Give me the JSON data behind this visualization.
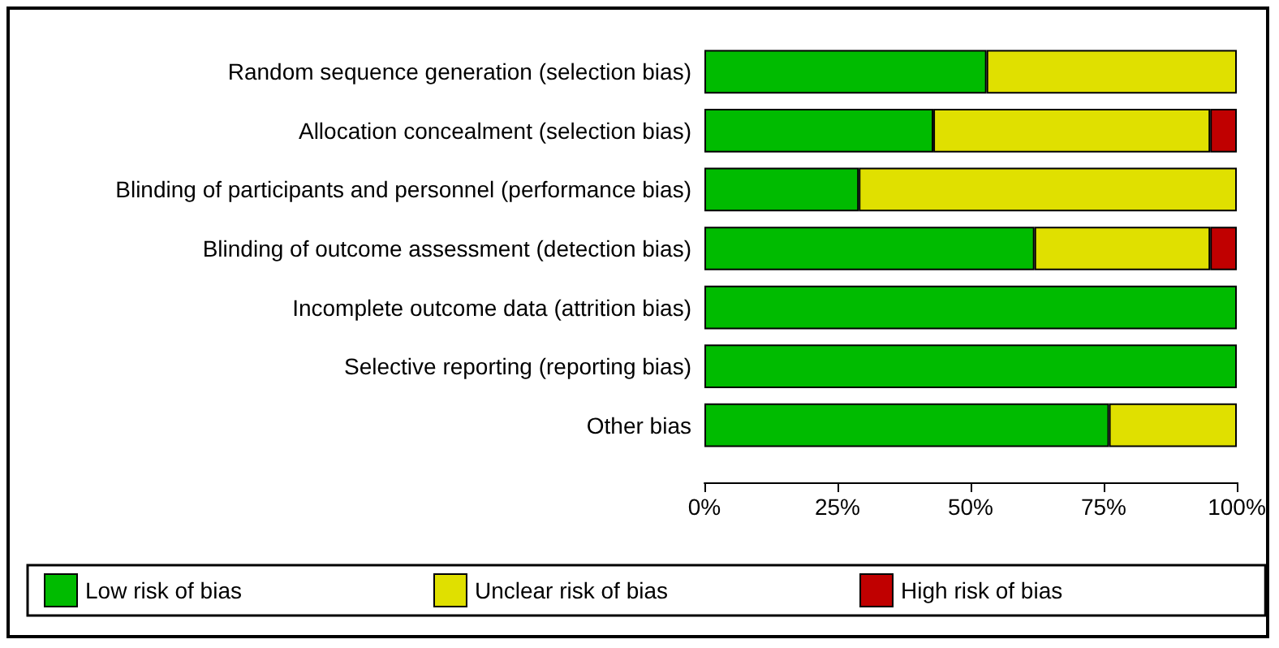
{
  "chart_data": {
    "type": "bar",
    "orientation": "horizontal",
    "stacked": true,
    "categories": [
      "Random sequence generation (selection bias)",
      "Allocation concealment (selection bias)",
      "Blinding of participants and personnel (performance bias)",
      "Blinding of outcome assessment (detection bias)",
      "Incomplete outcome data (attrition bias)",
      "Selective reporting (reporting bias)",
      "Other bias"
    ],
    "series": [
      {
        "name": "Low risk of bias",
        "color": "#00bb00",
        "values": [
          53,
          43,
          29,
          62,
          100,
          100,
          76
        ]
      },
      {
        "name": "Unclear risk of bias",
        "color": "#e0e000",
        "values": [
          47,
          52,
          71,
          33,
          0,
          0,
          24
        ]
      },
      {
        "name": "High risk of bias",
        "color": "#c00000",
        "values": [
          0,
          5,
          0,
          5,
          0,
          0,
          0
        ]
      }
    ],
    "xlim": [
      0,
      100
    ],
    "xticks": [
      {
        "value": 0,
        "label": "0%"
      },
      {
        "value": 25,
        "label": "25%"
      },
      {
        "value": 50,
        "label": "50%"
      },
      {
        "value": 75,
        "label": "75%"
      },
      {
        "value": 100,
        "label": "100%"
      }
    ],
    "grid": false,
    "legend": "bottom"
  }
}
